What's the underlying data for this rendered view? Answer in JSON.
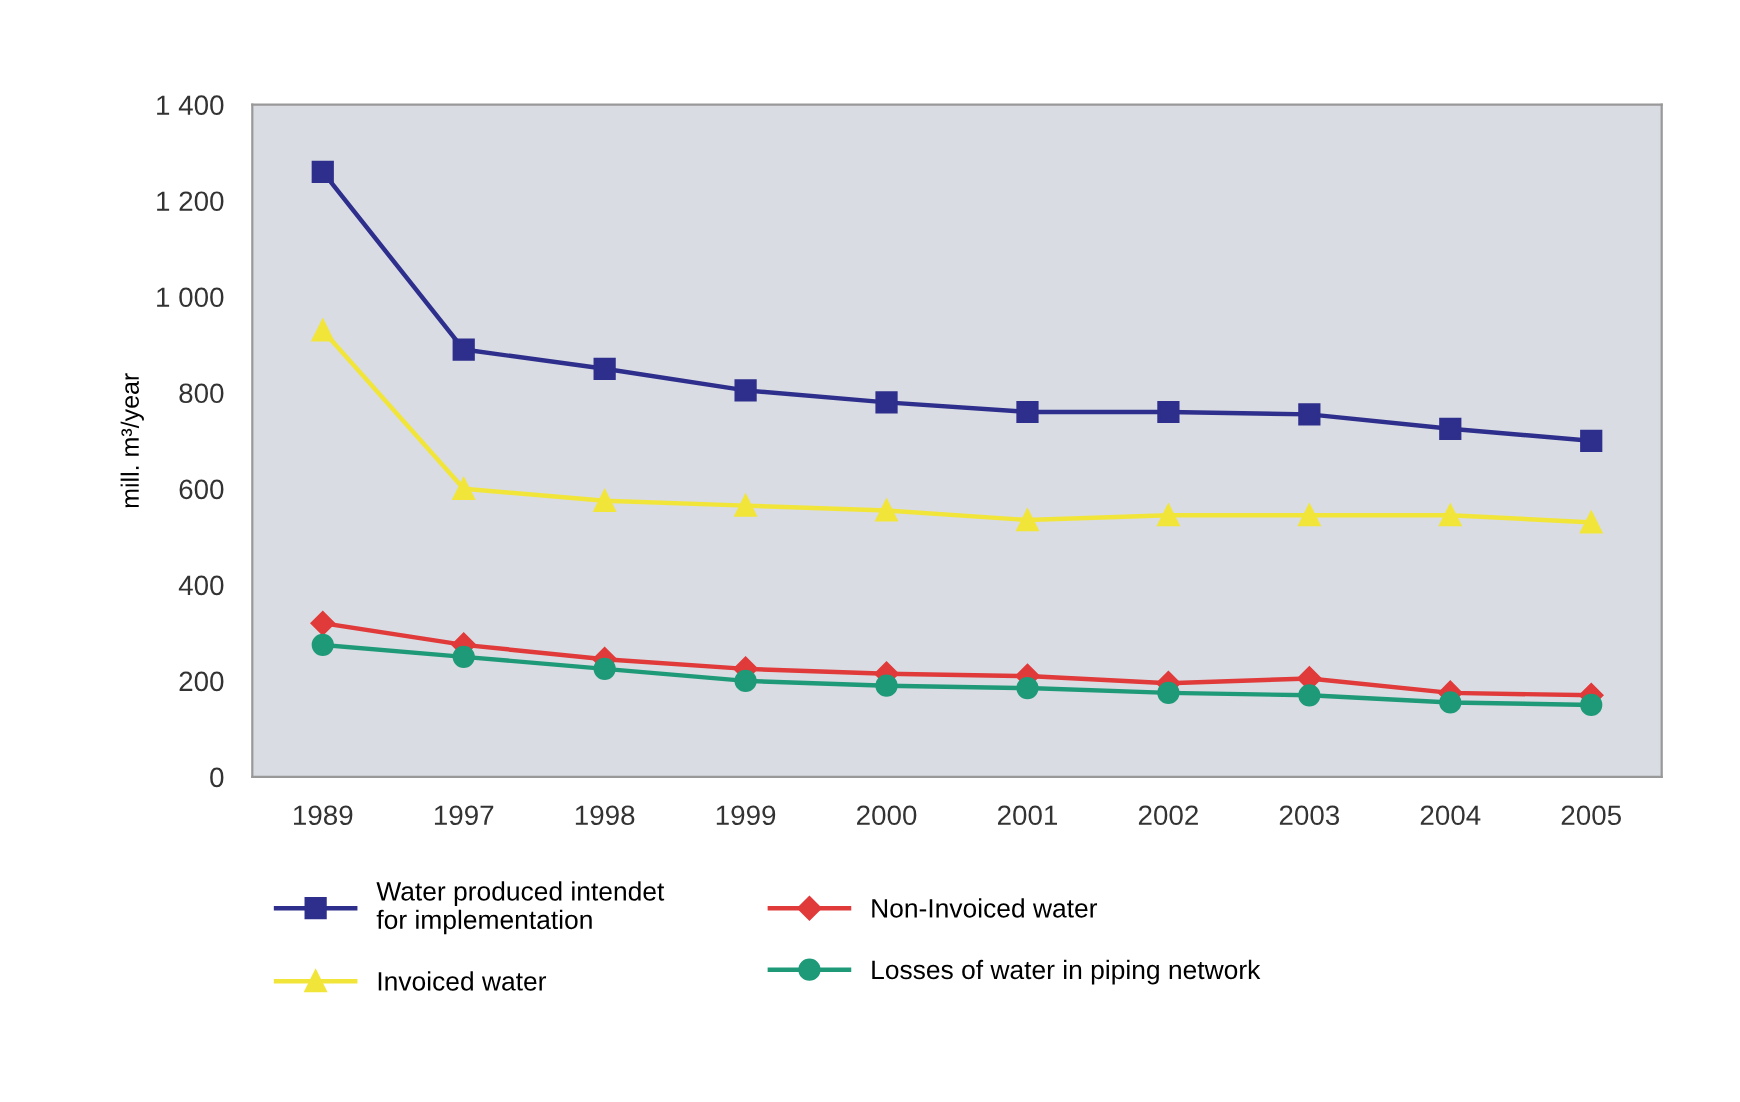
{
  "chart_data": {
    "type": "line",
    "ylabel": "mill. m³/year",
    "categories": [
      "1989",
      "1997",
      "1998",
      "1999",
      "2000",
      "2001",
      "2002",
      "2003",
      "2004",
      "2005"
    ],
    "series": [
      {
        "name": "Water produced intendet\nfor implementation",
        "color": "#2e2e8c",
        "marker": "square",
        "values": [
          1260,
          890,
          850,
          805,
          780,
          760,
          760,
          755,
          725,
          700
        ]
      },
      {
        "name": "Invoiced water",
        "color": "#f2e53a",
        "marker": "triangle",
        "values": [
          930,
          600,
          575,
          565,
          555,
          535,
          545,
          545,
          545,
          530
        ]
      },
      {
        "name": "Non-Invoiced water",
        "color": "#e03a3a",
        "marker": "diamond",
        "values": [
          320,
          275,
          245,
          225,
          215,
          210,
          195,
          205,
          175,
          170
        ]
      },
      {
        "name": "Losses of water in piping network",
        "color": "#1e9a78",
        "marker": "circle",
        "values": [
          275,
          250,
          225,
          200,
          190,
          185,
          175,
          170,
          155,
          150
        ]
      }
    ],
    "ylim": [
      0,
      1400
    ],
    "yticks": [
      0,
      200,
      400,
      600,
      800,
      {
        "value": 1000,
        "label": "1 000"
      },
      {
        "value": 1200,
        "label": "1 200"
      },
      {
        "value": 1400,
        "label": "1 400"
      }
    ],
    "grid": false,
    "legend": "bottom",
    "line_style": "solid"
  }
}
